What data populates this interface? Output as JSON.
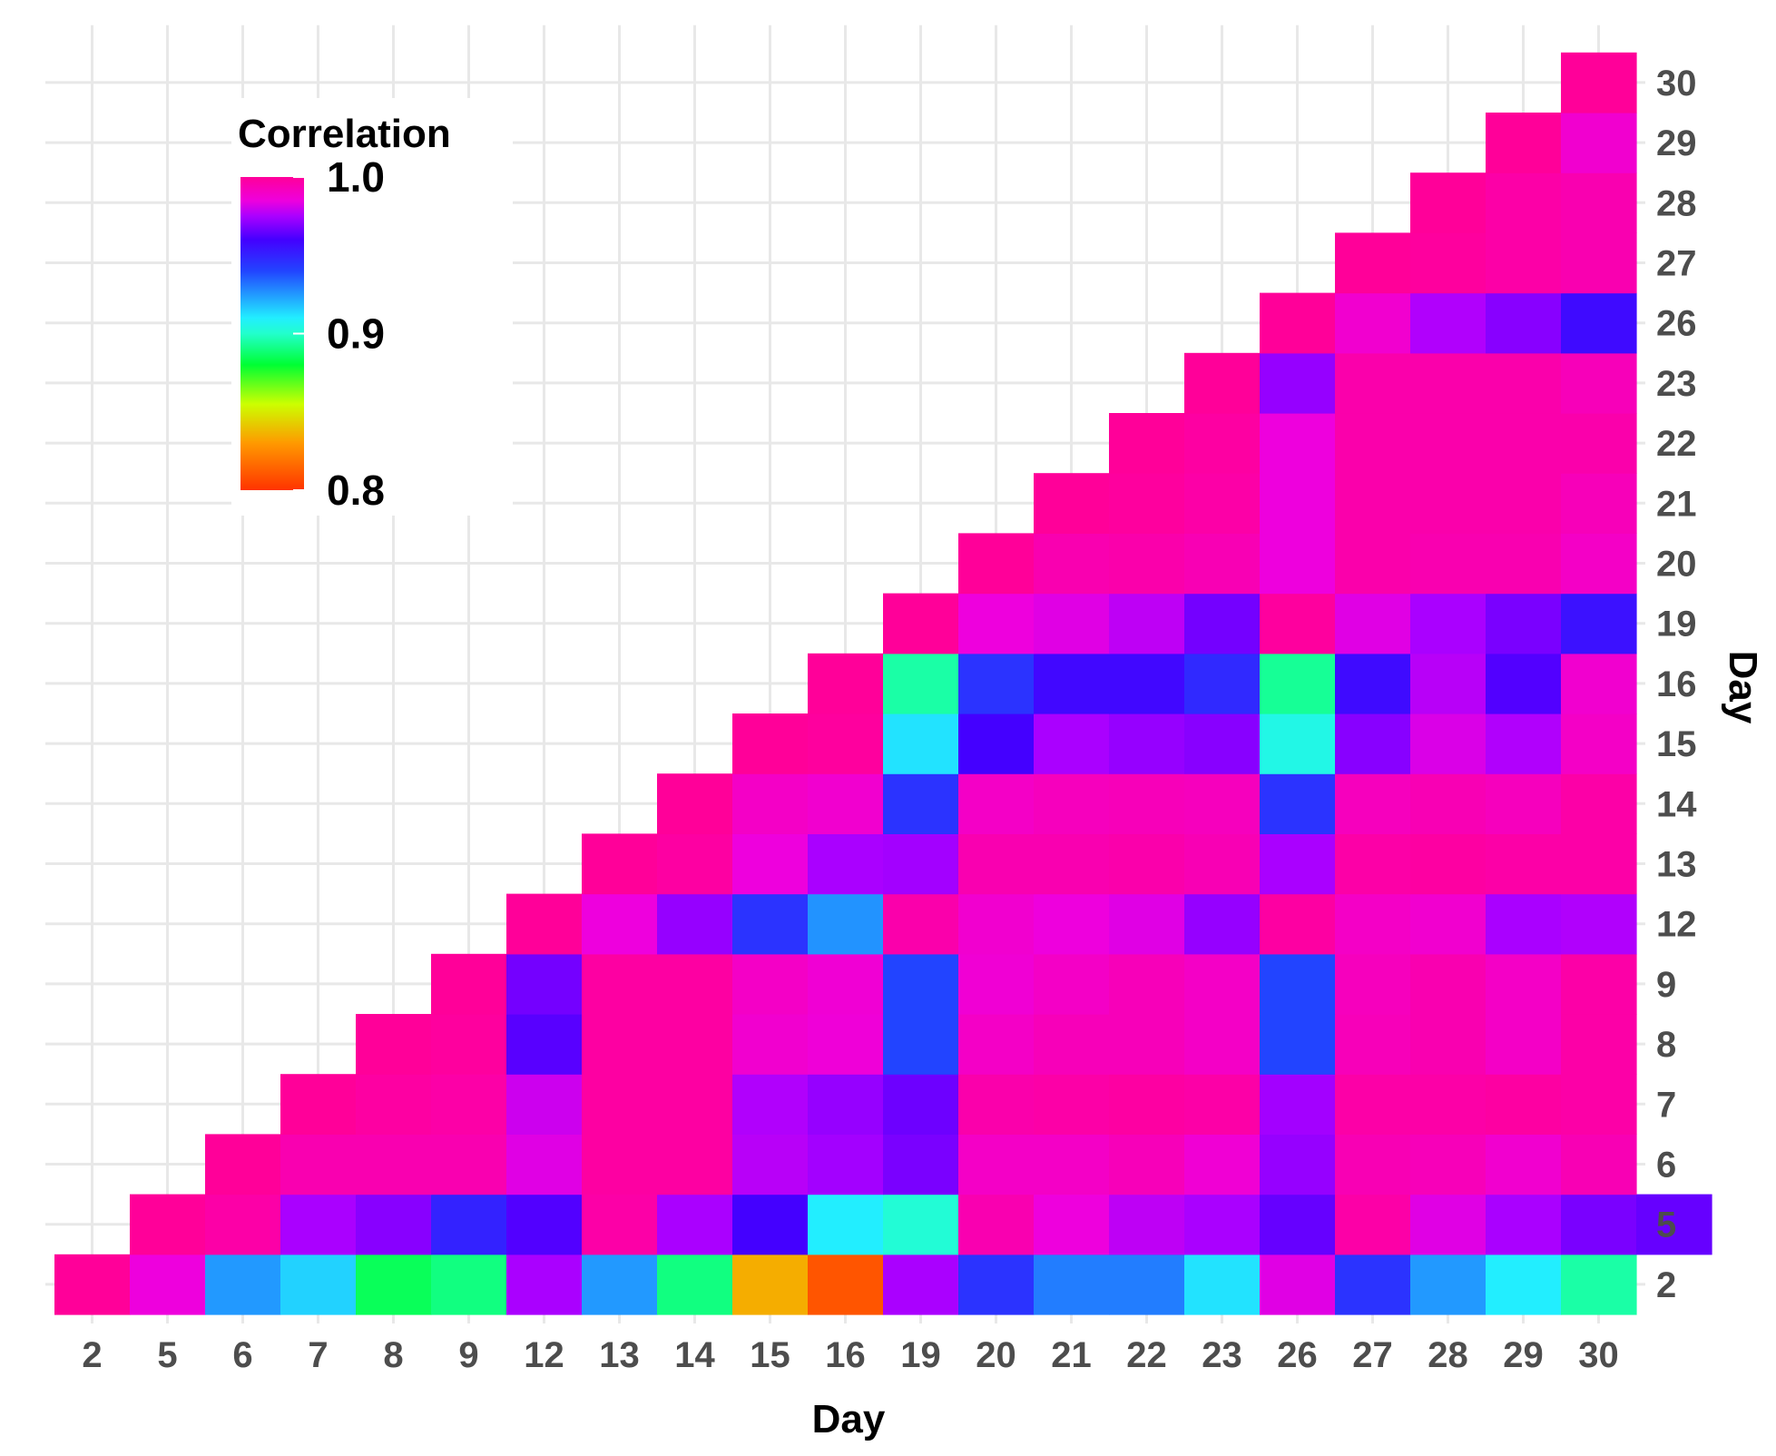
{
  "chart_data": {
    "type": "heatmap",
    "title": "",
    "xlabel": "Day",
    "ylabel": "Day",
    "days": [
      "2",
      "5",
      "6",
      "7",
      "8",
      "9",
      "12",
      "13",
      "14",
      "15",
      "16",
      "19",
      "20",
      "21",
      "22",
      "23",
      "26",
      "27",
      "28",
      "29",
      "30"
    ],
    "color_scale": {
      "title": "Correlation",
      "min": 0.8,
      "max": 1.0,
      "tick_values": [
        1.0,
        0.9,
        0.8
      ],
      "tick_labels": [
        "1.0",
        "0.9",
        "0.8"
      ],
      "stops": [
        {
          "value": 0.8,
          "color": "#ff3300"
        },
        {
          "value": 0.83,
          "color": "#ff9900"
        },
        {
          "value": 0.855,
          "color": "#ccff00"
        },
        {
          "value": 0.88,
          "color": "#00ff33"
        },
        {
          "value": 0.9,
          "color": "#22ffcc"
        },
        {
          "value": 0.91,
          "color": "#22eeff"
        },
        {
          "value": 0.94,
          "color": "#2244ff"
        },
        {
          "value": 0.96,
          "color": "#4400ff"
        },
        {
          "value": 0.975,
          "color": "#aa00ff"
        },
        {
          "value": 0.985,
          "color": "#ee00dd"
        },
        {
          "value": 1.0,
          "color": "#ff0099"
        }
      ]
    },
    "legend_position": "top-left",
    "matrix_note": "rows[i] = row day days[i] (bottom to top); rows[i][j] = correlation with column day days[j], defined for j >= i",
    "rows": [
      [
        1.0,
        0.985,
        0.925,
        0.915,
        0.885,
        0.89,
        0.975,
        0.925,
        0.89,
        0.835,
        0.81,
        0.975,
        0.945,
        0.93,
        0.93,
        0.912,
        0.983,
        0.945,
        0.925,
        0.91,
        0.895
      ],
      [
        1.0,
        0.997,
        0.975,
        0.97,
        0.95,
        0.962,
        0.997,
        0.975,
        0.96,
        0.91,
        0.902,
        0.995,
        0.985,
        0.978,
        0.975,
        0.965,
        0.997,
        0.983,
        0.975,
        0.968,
        0.965
      ],
      [
        1.0,
        0.995,
        0.995,
        0.995,
        0.983,
        0.998,
        0.998,
        0.977,
        0.974,
        0.968,
        0.99,
        0.99,
        0.993,
        0.987,
        0.972,
        0.994,
        0.993,
        0.988,
        0.994
      ],
      [
        1.0,
        0.998,
        0.997,
        0.98,
        0.998,
        0.998,
        0.976,
        0.972,
        0.966,
        0.996,
        0.997,
        0.998,
        0.997,
        0.974,
        0.997,
        0.997,
        0.998,
        0.997
      ],
      [
        1.0,
        0.999,
        0.963,
        0.998,
        0.998,
        0.988,
        0.986,
        0.94,
        0.99,
        0.993,
        0.993,
        0.99,
        0.94,
        0.993,
        0.995,
        0.99,
        0.997
      ],
      [
        1.0,
        0.967,
        0.998,
        0.998,
        0.99,
        0.987,
        0.94,
        0.987,
        0.99,
        0.993,
        0.99,
        0.94,
        0.992,
        0.995,
        0.99,
        0.997
      ],
      [
        1.0,
        0.985,
        0.972,
        0.945,
        0.926,
        0.996,
        0.988,
        0.985,
        0.983,
        0.972,
        0.998,
        0.99,
        0.988,
        0.975,
        0.976
      ],
      [
        1.0,
        0.998,
        0.985,
        0.975,
        0.974,
        0.995,
        0.995,
        0.996,
        0.994,
        0.975,
        0.997,
        0.998,
        0.997,
        0.997
      ],
      [
        1.0,
        0.99,
        0.988,
        0.945,
        0.99,
        0.992,
        0.993,
        0.992,
        0.945,
        0.992,
        0.994,
        0.992,
        0.997
      ],
      [
        1.0,
        0.999,
        0.912,
        0.96,
        0.975,
        0.972,
        0.97,
        0.905,
        0.97,
        0.982,
        0.976,
        0.99
      ],
      [
        1.0,
        0.895,
        0.945,
        0.958,
        0.958,
        0.948,
        0.893,
        0.957,
        0.977,
        0.962,
        0.988
      ],
      [
        1.0,
        0.985,
        0.983,
        0.978,
        0.967,
        0.999,
        0.983,
        0.975,
        0.968,
        0.955
      ],
      [
        1.0,
        0.995,
        0.996,
        0.994,
        0.985,
        0.996,
        0.995,
        0.995,
        0.99
      ],
      [
        1.0,
        0.999,
        0.997,
        0.985,
        0.996,
        0.996,
        0.996,
        0.993
      ],
      [
        1.0,
        0.998,
        0.985,
        0.996,
        0.996,
        0.996,
        0.996
      ],
      [
        1.0,
        0.972,
        0.996,
        0.996,
        0.996,
        0.993
      ],
      [
        1.0,
        0.988,
        0.976,
        0.97,
        0.957
      ],
      [
        1.0,
        0.999,
        0.997,
        0.995
      ],
      [
        1.0,
        0.997,
        0.995
      ],
      [
        1.0,
        0.988
      ],
      [
        1.0
      ]
    ]
  }
}
